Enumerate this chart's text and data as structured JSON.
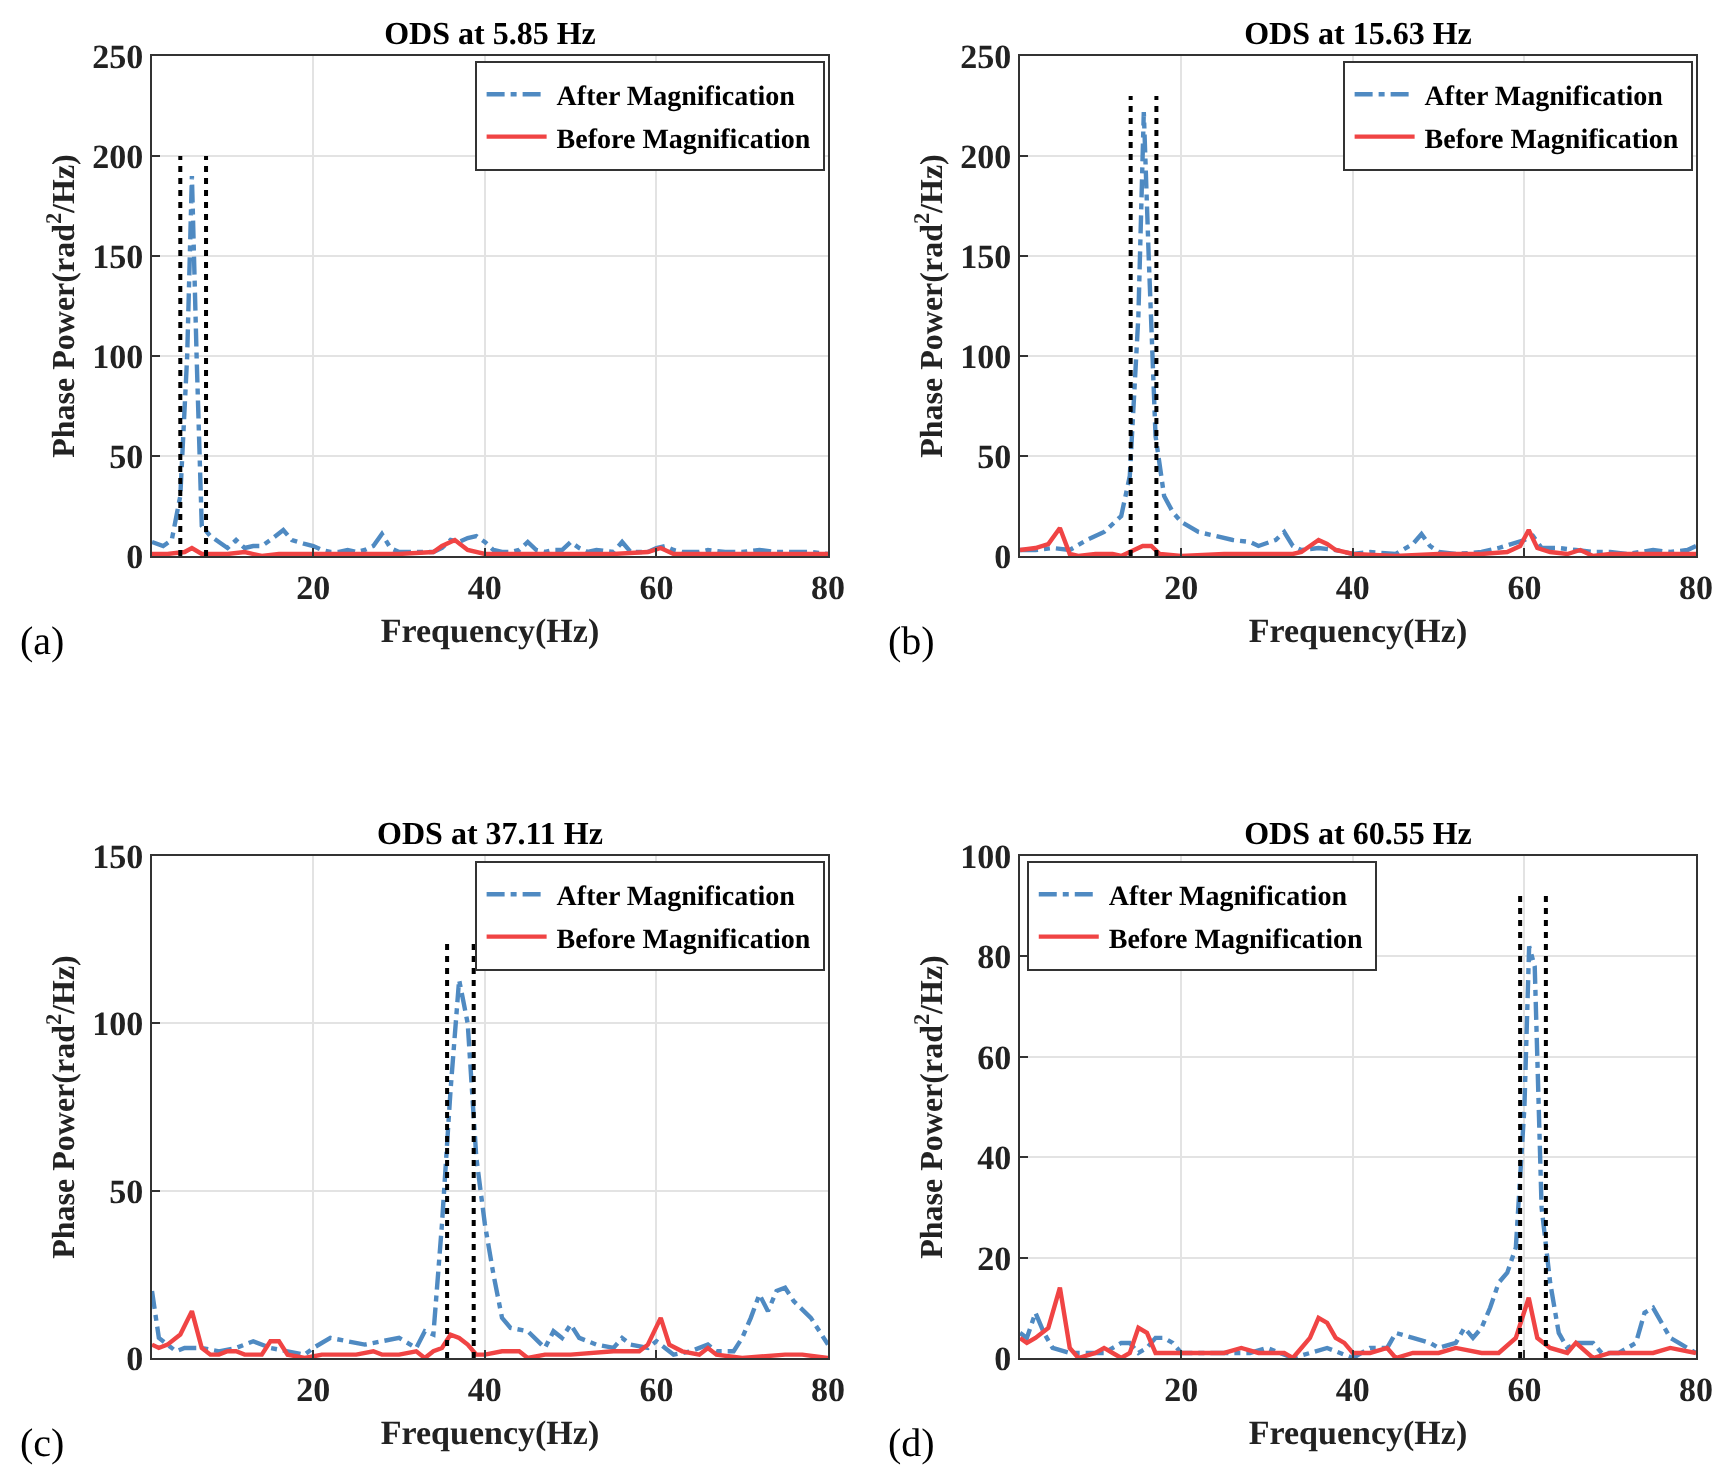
{
  "chart_data": [
    {
      "type": "line",
      "title": "ODS at 5.85 Hz",
      "xlabel": "Frequency(Hz)",
      "ylabel": "Phase Power(rad$^{2}$/Hz)",
      "annotations": [
        "(a)"
      ],
      "xlim": [
        1.2,
        80
      ],
      "xticks": [
        20,
        40,
        60,
        80
      ],
      "ylim": [
        0,
        250
      ],
      "yticks": [
        0,
        50,
        100,
        150,
        200,
        250
      ],
      "grid": true,
      "legend": "top right",
      "series": [
        {
          "name": "After Magnification",
          "color": "#4f8ac2",
          "line_style": "dashed",
          "x": [
            1.2,
            2.5,
            3.5,
            4.5,
            5.3,
            5.85,
            6.4,
            7,
            8,
            9,
            10,
            11,
            12,
            13,
            14,
            15,
            16.5,
            17.5,
            19,
            20,
            21,
            22,
            23,
            24,
            25,
            26,
            27,
            28,
            29,
            30,
            32,
            34,
            35,
            36,
            37,
            38,
            39,
            40,
            41,
            42,
            43,
            44,
            45,
            46,
            47,
            48,
            49,
            50,
            51,
            52,
            53,
            55,
            56,
            57,
            58,
            59,
            60,
            61,
            62,
            63,
            65,
            66,
            68,
            70,
            72,
            74,
            76,
            78,
            80
          ],
          "values": [
            7,
            5,
            8,
            30,
            100,
            190,
            100,
            15,
            10,
            7,
            4,
            8,
            4,
            5,
            5,
            8,
            13,
            8,
            6,
            5,
            3,
            2,
            2,
            3,
            2,
            3,
            5,
            11,
            4,
            2,
            2,
            2,
            4,
            8,
            7,
            9,
            10,
            7,
            3,
            2,
            2,
            3,
            7,
            3,
            2,
            3,
            3,
            7,
            4,
            2,
            3,
            2,
            7,
            2,
            2,
            2,
            4,
            5,
            3,
            2,
            2,
            3,
            2,
            2,
            3,
            2,
            2,
            2,
            1
          ]
        },
        {
          "name": "Before Magnification",
          "color": "#f04444",
          "line_style": "solid",
          "x": [
            1.2,
            3,
            5,
            5.85,
            7,
            10,
            12,
            14,
            16,
            20,
            25,
            30,
            34,
            35,
            36.5,
            38,
            40,
            45,
            50,
            55,
            59,
            60.5,
            62,
            65,
            70,
            75,
            80
          ],
          "values": [
            1,
            1,
            2,
            4,
            1,
            1,
            2,
            0,
            1,
            1,
            1,
            1,
            2,
            5,
            8,
            3,
            1,
            1,
            1,
            1,
            2,
            4,
            1,
            1,
            1,
            1,
            1
          ]
        },
        {
          "color": "#000000",
          "line_style": "dotted",
          "x": [
            4.5,
            4.5
          ],
          "values": [
            0,
            200
          ]
        },
        {
          "color": "#000000",
          "line_style": "dotted",
          "x": [
            7.5,
            7.5
          ],
          "values": [
            0,
            200
          ]
        }
      ]
    },
    {
      "type": "line",
      "title": "ODS at 15.63 Hz",
      "xlabel": "Frequency(Hz)",
      "ylabel": "Phase Power(rad$^{2}$/Hz)",
      "annotations": [
        "(b)"
      ],
      "xlim": [
        1.2,
        80
      ],
      "xticks": [
        20,
        40,
        60,
        80
      ],
      "ylim": [
        0,
        250
      ],
      "yticks": [
        0,
        50,
        100,
        150,
        200,
        250
      ],
      "grid": true,
      "legend": "top right",
      "series": [
        {
          "name": "After Magnification",
          "color": "#4f8ac2",
          "line_style": "dashed",
          "x": [
            1.2,
            3,
            5,
            7,
            9,
            11,
            13,
            14,
            15,
            15.63,
            16.2,
            17,
            18,
            19,
            20,
            22,
            24,
            26,
            28,
            29,
            31,
            32,
            33,
            34,
            36,
            38,
            40,
            42,
            45,
            47,
            48,
            49,
            50,
            52,
            55,
            57,
            60,
            61,
            62,
            64,
            66,
            68,
            70,
            72,
            75,
            77,
            79,
            80
          ],
          "values": [
            3,
            3,
            4,
            3,
            8,
            12,
            20,
            40,
            120,
            222,
            150,
            60,
            30,
            22,
            17,
            12,
            10,
            8,
            7,
            5,
            8,
            12,
            5,
            3,
            4,
            3,
            1,
            2,
            1,
            6,
            11,
            5,
            2,
            1,
            2,
            4,
            8,
            10,
            4,
            4,
            3,
            2,
            2,
            1,
            3,
            2,
            3,
            5
          ]
        },
        {
          "name": "Before Magnification",
          "color": "#f04444",
          "line_style": "solid",
          "x": [
            1.2,
            3,
            4.5,
            5.85,
            7,
            8,
            10,
            12,
            13,
            14,
            15.5,
            16.5,
            17.5,
            20,
            25,
            30,
            33,
            34,
            36,
            37,
            38,
            40,
            45,
            50,
            55,
            58,
            59.5,
            60.5,
            61.5,
            63,
            65,
            66.5,
            68,
            70,
            75,
            78,
            80
          ],
          "values": [
            3,
            4,
            6,
            14,
            1,
            0,
            1,
            1,
            0,
            2,
            5,
            5,
            1,
            0,
            1,
            1,
            1,
            2,
            8,
            6,
            3,
            1,
            0,
            1,
            1,
            2,
            5,
            13,
            4,
            2,
            1,
            3,
            0,
            1,
            1,
            1,
            1
          ]
        },
        {
          "color": "#000000",
          "line_style": "dotted",
          "x": [
            14.1,
            14.1
          ],
          "values": [
            0,
            230
          ]
        },
        {
          "color": "#000000",
          "line_style": "dotted",
          "x": [
            17.1,
            17.1
          ],
          "values": [
            0,
            230
          ]
        }
      ]
    },
    {
      "type": "line",
      "title": "ODS at 37.11 Hz",
      "xlabel": "Frequency(Hz)",
      "ylabel": "Phase Power(rad$^{2}$/Hz)",
      "annotations": [
        "(c)"
      ],
      "xlim": [
        1.2,
        80
      ],
      "xticks": [
        20,
        40,
        60,
        80
      ],
      "ylim": [
        0,
        150
      ],
      "yticks": [
        0,
        50,
        100,
        150
      ],
      "grid": true,
      "legend": "top right",
      "series": [
        {
          "name": "After Magnification",
          "color": "#4f8ac2",
          "line_style": "dashed",
          "x": [
            1.2,
            2,
            3,
            4,
            5,
            7,
            9,
            11,
            13,
            15,
            17,
            19,
            20,
            22,
            24,
            26,
            28,
            30,
            32,
            33,
            34,
            35,
            36,
            37,
            38,
            39,
            40,
            41,
            42,
            43,
            45,
            47,
            48,
            49,
            50,
            51,
            53,
            55,
            56,
            57,
            59,
            60,
            61,
            62,
            64,
            66,
            67,
            69,
            70,
            71,
            72,
            73,
            74,
            75,
            76,
            78,
            80
          ],
          "values": [
            20,
            6,
            4,
            2,
            3,
            3,
            2,
            3,
            5,
            3,
            2,
            1,
            3,
            6,
            5,
            4,
            5,
            6,
            3,
            8,
            7,
            40,
            80,
            113,
            100,
            60,
            40,
            25,
            12,
            9,
            8,
            3,
            8,
            6,
            10,
            6,
            4,
            3,
            6,
            4,
            3,
            5,
            3,
            1,
            2,
            4,
            2,
            2,
            6,
            12,
            19,
            14,
            20,
            21,
            17,
            12,
            4
          ]
        },
        {
          "name": "Before Magnification",
          "color": "#f04444",
          "line_style": "solid",
          "x": [
            1.2,
            2,
            3,
            4.5,
            5.85,
            7,
            8,
            9,
            10,
            11,
            12,
            14,
            15,
            16,
            17,
            19,
            21,
            25,
            27,
            28,
            30,
            32,
            33,
            34,
            35,
            36,
            37,
            38,
            39,
            40,
            42,
            44,
            45,
            47,
            50,
            55,
            58,
            59,
            60.5,
            61.5,
            63,
            65,
            66,
            67,
            70,
            75,
            77,
            80
          ],
          "values": [
            4,
            3,
            4,
            7,
            14,
            3,
            1,
            1,
            2,
            2,
            1,
            1,
            5,
            5,
            1,
            0,
            1,
            1,
            2,
            1,
            1,
            2,
            0,
            2,
            3,
            7,
            6,
            4,
            1,
            1,
            2,
            2,
            0,
            1,
            1,
            2,
            2,
            4,
            12,
            4,
            2,
            1,
            3,
            1,
            0,
            1,
            1,
            0
          ]
        },
        {
          "color": "#000000",
          "line_style": "dotted",
          "x": [
            35.6,
            35.6
          ],
          "values": [
            0,
            124
          ]
        },
        {
          "color": "#000000",
          "line_style": "dotted",
          "x": [
            38.7,
            38.7
          ],
          "values": [
            0,
            124
          ]
        }
      ]
    },
    {
      "type": "line",
      "title": "ODS at 60.55 Hz",
      "xlabel": "Frequency(Hz)",
      "ylabel": "Phase Power(rad$^{2}$/Hz)",
      "annotations": [
        "(d)"
      ],
      "xlim": [
        1.2,
        80
      ],
      "xticks": [
        20,
        40,
        60,
        80
      ],
      "ylim": [
        0,
        100
      ],
      "yticks": [
        0,
        20,
        40,
        60,
        80,
        100
      ],
      "grid": true,
      "legend": "top left",
      "series": [
        {
          "name": "After Magnification",
          "color": "#4f8ac2",
          "line_style": "dashed",
          "x": [
            1.2,
            2,
            3,
            4,
            5,
            7,
            9,
            11,
            13,
            14,
            15,
            16,
            17,
            18,
            19,
            20,
            25,
            28,
            30,
            33,
            35,
            37,
            40,
            42,
            44,
            45,
            47,
            49,
            50,
            52,
            53,
            54,
            55,
            56,
            57,
            58,
            59,
            60,
            60.55,
            61.2,
            62,
            63,
            64,
            65,
            66,
            68,
            69,
            71,
            73,
            74,
            75,
            76,
            77,
            78,
            79,
            80
          ],
          "values": [
            5,
            4,
            9,
            5,
            2,
            1,
            1,
            1,
            3,
            3,
            1,
            2,
            4,
            4,
            3,
            1,
            1,
            1,
            2,
            0,
            1,
            2,
            0,
            2,
            2,
            5,
            4,
            3,
            2,
            3,
            6,
            4,
            6,
            10,
            15,
            17,
            22,
            50,
            82,
            78,
            30,
            15,
            5,
            2,
            3,
            3,
            1,
            1,
            3,
            9,
            10,
            7,
            4,
            3,
            2,
            1
          ]
        },
        {
          "name": "Before Magnification",
          "color": "#f04444",
          "line_style": "solid",
          "x": [
            1.2,
            2,
            3,
            4.5,
            5.85,
            7,
            8,
            10,
            11,
            12,
            13,
            14,
            15,
            16,
            17,
            20,
            25,
            27,
            29,
            30,
            32,
            33,
            34,
            35,
            36,
            37,
            38,
            39,
            40,
            42,
            44,
            45,
            47,
            50,
            52,
            55,
            57,
            59,
            60.5,
            61.5,
            63,
            65,
            66,
            68,
            70,
            75,
            77,
            80
          ],
          "values": [
            4,
            3,
            4,
            6,
            14,
            2,
            0,
            1,
            2,
            1,
            0,
            1,
            6,
            5,
            1,
            1,
            1,
            2,
            1,
            1,
            1,
            0,
            2,
            4,
            8,
            7,
            4,
            3,
            1,
            1,
            2,
            0,
            1,
            1,
            2,
            1,
            1,
            4,
            12,
            4,
            2,
            1,
            3,
            0,
            1,
            1,
            2,
            1
          ]
        },
        {
          "color": "#000000",
          "line_style": "dotted",
          "x": [
            59.5,
            59.5
          ],
          "values": [
            0,
            93
          ]
        },
        {
          "color": "#000000",
          "line_style": "dotted",
          "x": [
            62.5,
            62.5
          ],
          "values": [
            0,
            93
          ]
        }
      ]
    }
  ]
}
